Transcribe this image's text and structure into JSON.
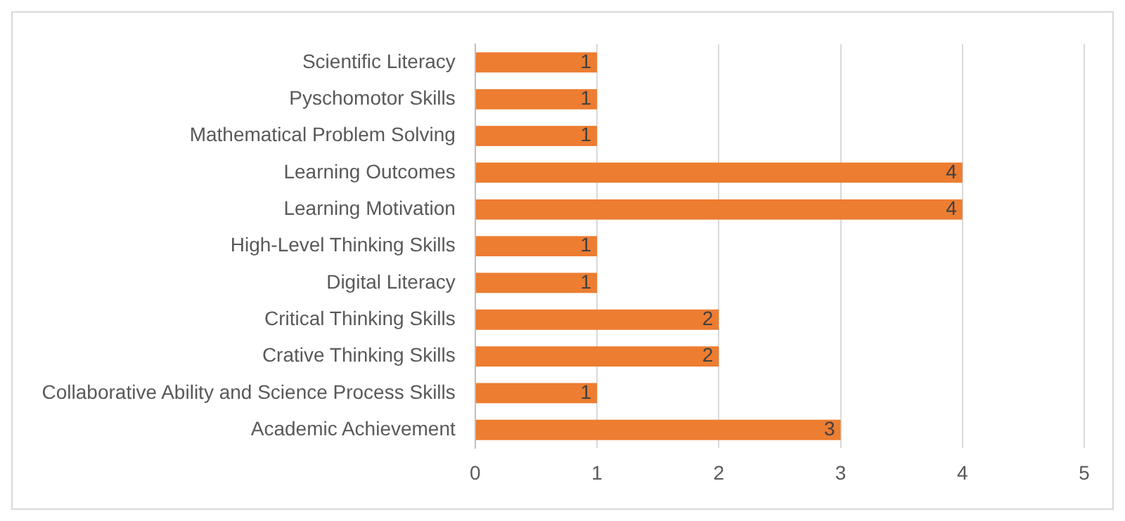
{
  "chart_data": {
    "type": "bar",
    "orientation": "horizontal",
    "categories": [
      "Scientific Literacy",
      "Pyschomotor Skills",
      "Mathematical Problem Solving",
      "Learning Outcomes",
      "Learning Motivation",
      "High-Level Thinking Skills",
      "Digital Literacy",
      "Critical Thinking Skills",
      "Crative Thinking Skills",
      "Collaborative Ability and Science Process Skills",
      "Academic Achievement"
    ],
    "values": [
      1,
      1,
      1,
      4,
      4,
      1,
      1,
      2,
      2,
      1,
      3
    ],
    "color": "#ed7d31",
    "xlim": [
      0,
      5
    ],
    "xticks": [
      0,
      1,
      2,
      3,
      4,
      5
    ],
    "grid": "x",
    "data_labels": true,
    "legend": false
  }
}
